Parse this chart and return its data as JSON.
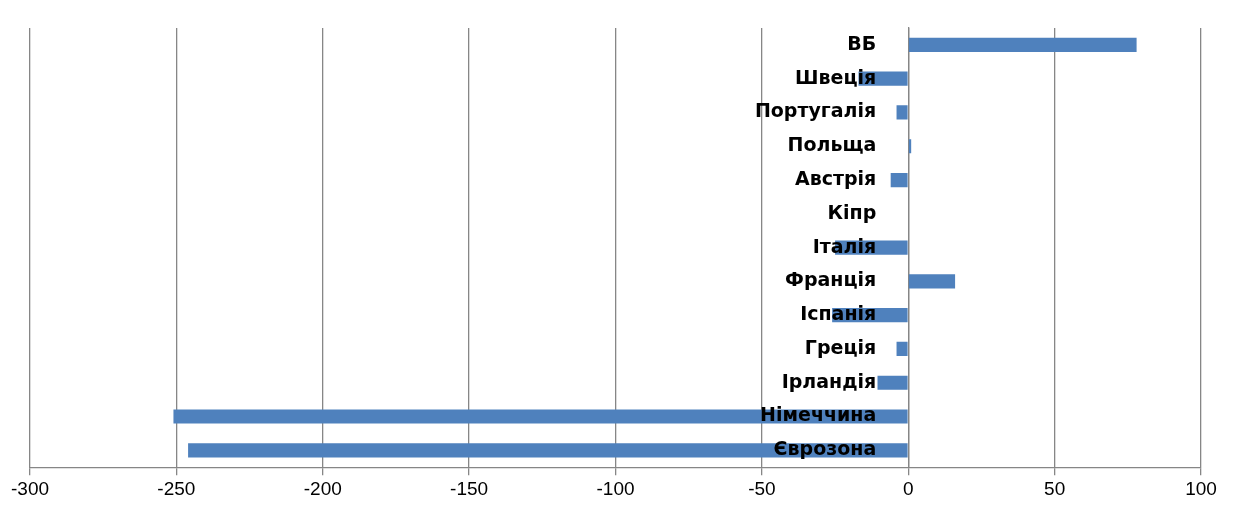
{
  "chart_data": {
    "type": "bar",
    "orientation": "horizontal",
    "categories": [
      "ВБ",
      "Швеція",
      "Португалія",
      "Польща",
      "Австрія",
      "Кіпр",
      "Італія",
      "Франція",
      "Іспанія",
      "Греція",
      "Ірландія",
      "Німеччина",
      "Єврозона"
    ],
    "values": [
      78,
      -17,
      -4,
      1,
      -6,
      0,
      -25,
      16,
      -26,
      -4,
      -10.5,
      -251,
      -246
    ],
    "color": "#4f81bd",
    "xlim": [
      -300,
      100
    ],
    "xticks": [
      -300,
      -250,
      -200,
      -150,
      -100,
      -50,
      0,
      50,
      100
    ],
    "grid": "x",
    "legend": false
  }
}
